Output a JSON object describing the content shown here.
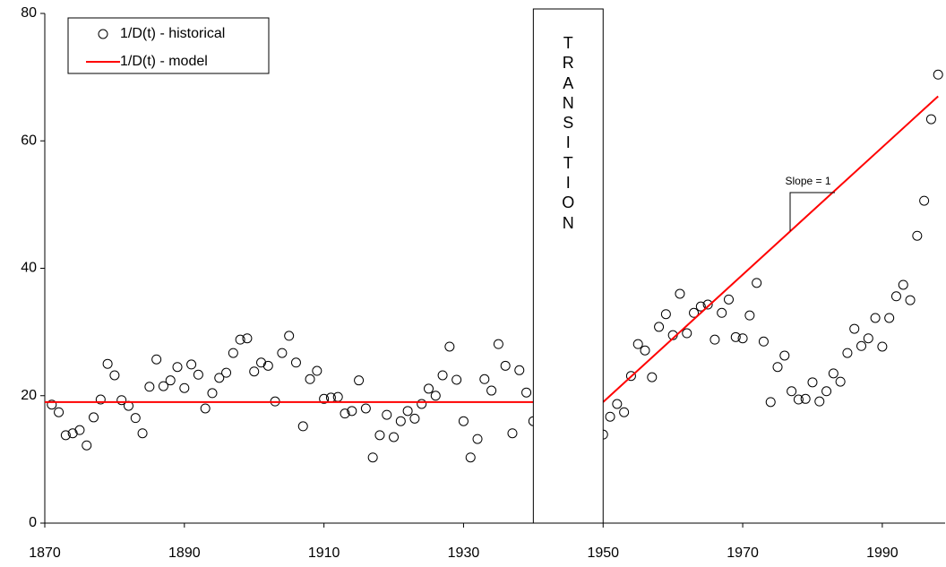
{
  "chart_data": {
    "type": "scatter",
    "series": [
      {
        "name": "1/D(t) - historical",
        "color": "#000000",
        "marker": "circle",
        "x": [
          1871,
          1872,
          1873,
          1874,
          1875,
          1876,
          1877,
          1878,
          1879,
          1880,
          1881,
          1882,
          1883,
          1884,
          1885,
          1886,
          1887,
          1888,
          1889,
          1890,
          1891,
          1892,
          1893,
          1894,
          1895,
          1896,
          1897,
          1898,
          1899,
          1900,
          1901,
          1902,
          1903,
          1904,
          1905,
          1906,
          1907,
          1908,
          1909,
          1910,
          1911,
          1912,
          1913,
          1914,
          1915,
          1916,
          1917,
          1918,
          1919,
          1920,
          1921,
          1922,
          1923,
          1924,
          1925,
          1926,
          1927,
          1928,
          1929,
          1930,
          1931,
          1932,
          1933,
          1934,
          1935,
          1936,
          1937,
          1938,
          1939,
          1940,
          1950,
          1951,
          1952,
          1953,
          1954,
          1955,
          1956,
          1957,
          1958,
          1959,
          1960,
          1961,
          1962,
          1963,
          1964,
          1965,
          1966,
          1967,
          1968,
          1969,
          1970,
          1971,
          1972,
          1973,
          1974,
          1975,
          1976,
          1977,
          1978,
          1979,
          1980,
          1981,
          1982,
          1983,
          1984,
          1985,
          1986,
          1987,
          1988,
          1989,
          1990,
          1991,
          1992,
          1993,
          1994,
          1995,
          1996,
          1997,
          1998
        ],
        "values": [
          18.6,
          17.4,
          13.8,
          14.1,
          14.6,
          12.2,
          16.6,
          19.4,
          25.0,
          23.2,
          19.3,
          18.4,
          16.5,
          14.1,
          21.4,
          25.7,
          21.5,
          22.4,
          24.5,
          21.2,
          24.9,
          23.3,
          18.0,
          20.4,
          22.8,
          23.6,
          26.7,
          28.8,
          29.0,
          23.8,
          25.2,
          24.7,
          19.1,
          26.7,
          29.4,
          25.2,
          15.2,
          22.6,
          23.9,
          19.5,
          19.7,
          19.8,
          17.2,
          17.6,
          22.4,
          18.0,
          10.3,
          13.8,
          17.0,
          13.5,
          16.0,
          17.6,
          16.4,
          18.7,
          21.1,
          20.0,
          23.2,
          27.7,
          22.5,
          16.0,
          10.3,
          13.2,
          22.6,
          20.8,
          28.1,
          24.7,
          14.1,
          24.0,
          20.5,
          16.0,
          13.9,
          16.7,
          18.7,
          17.4,
          23.1,
          28.1,
          27.1,
          22.9,
          30.8,
          32.8,
          29.5,
          36.0,
          29.8,
          33.0,
          34.0,
          34.3,
          28.8,
          33.0,
          35.1,
          29.2,
          29.0,
          32.6,
          37.7,
          28.5,
          19.0,
          24.5,
          26.3,
          20.7,
          19.4,
          19.5,
          22.1,
          19.1,
          20.7,
          23.5,
          22.2,
          26.7,
          30.5,
          27.8,
          29.0,
          32.2,
          27.7,
          32.2,
          35.6,
          37.4,
          35.0,
          45.1,
          50.6,
          63.4,
          70.4
        ]
      },
      {
        "name": "1/D(t) - model",
        "color": "#ff0000",
        "marker": "line",
        "x": [
          1870,
          1940,
          1945,
          1950,
          1998
        ],
        "values": [
          19,
          19,
          null,
          19,
          67
        ]
      }
    ],
    "transition": {
      "label": "TRANSITION",
      "xlim": [
        1940,
        1950
      ]
    },
    "annotation": "Slope = 1",
    "xlim": [
      1870,
      1999
    ],
    "xticks": [
      1870,
      1890,
      1910,
      1930,
      1950,
      1970,
      1990
    ],
    "ylim": [
      0,
      80
    ],
    "yticks": [
      0,
      20,
      40,
      60,
      80
    ],
    "grid": false,
    "legend": "upper left"
  }
}
